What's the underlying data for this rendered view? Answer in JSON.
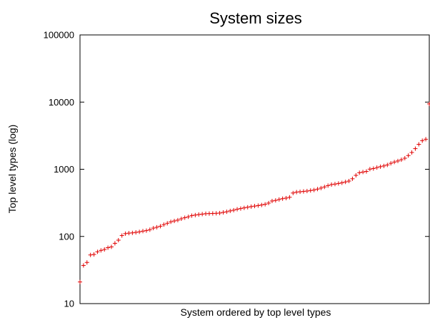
{
  "chart_data": {
    "type": "scatter",
    "title": "System sizes",
    "xlabel": "System ordered by top level types",
    "ylabel": "Top level types (log)",
    "y_scale": "log",
    "ylim": [
      10,
      100000
    ],
    "y_ticks": [
      10,
      100,
      1000,
      10000,
      100000
    ],
    "y_tick_labels": [
      "10",
      "100",
      "1000",
      "10000",
      "100000"
    ],
    "xlim": [
      0,
      100
    ],
    "x_tick_labels": [],
    "grid": false,
    "legend": "none",
    "series": [
      {
        "color": "#e00000",
        "marker": "plus",
        "x": [
          0,
          1,
          2,
          3,
          4,
          5,
          6,
          7,
          8,
          9,
          10,
          11,
          12,
          13,
          14,
          15,
          16,
          17,
          18,
          19,
          20,
          21,
          22,
          23,
          24,
          25,
          26,
          27,
          28,
          29,
          30,
          31,
          32,
          33,
          34,
          35,
          36,
          37,
          38,
          39,
          40,
          41,
          42,
          43,
          44,
          45,
          46,
          47,
          48,
          49,
          50,
          51,
          52,
          53,
          54,
          55,
          56,
          57,
          58,
          59,
          60,
          61,
          62,
          63,
          64,
          65,
          66,
          67,
          68,
          69,
          70,
          71,
          72,
          73,
          74,
          75,
          76,
          77,
          78,
          79,
          80,
          81,
          82,
          83,
          84,
          85,
          86,
          87,
          88,
          89,
          90,
          91,
          92,
          93,
          94,
          95,
          96,
          97,
          98,
          99,
          100
        ],
        "y": [
          21,
          37,
          41,
          53,
          54,
          59,
          62,
          64,
          68,
          70,
          79,
          88,
          103,
          110,
          112,
          113,
          115,
          117,
          120,
          122,
          126,
          133,
          137,
          142,
          150,
          157,
          165,
          170,
          175,
          183,
          190,
          196,
          204,
          208,
          212,
          215,
          218,
          219,
          220,
          221,
          223,
          228,
          233,
          240,
          246,
          254,
          260,
          266,
          272,
          278,
          283,
          288,
          294,
          301,
          314,
          337,
          344,
          355,
          365,
          372,
          383,
          443,
          457,
          462,
          468,
          474,
          483,
          491,
          507,
          525,
          546,
          571,
          592,
          602,
          615,
          628,
          648,
          668,
          722,
          812,
          888,
          910,
          928,
          1005,
          1024,
          1059,
          1092,
          1121,
          1161,
          1227,
          1281,
          1328,
          1387,
          1461,
          1601,
          1778,
          2027,
          2352,
          2665,
          2800,
          9400
        ]
      }
    ]
  }
}
